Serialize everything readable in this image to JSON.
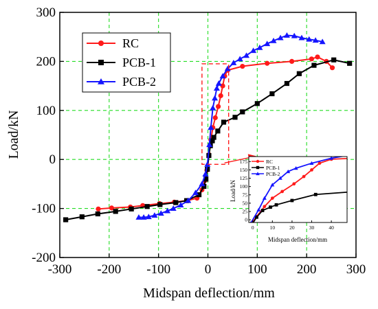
{
  "chart_data": {
    "type": "line",
    "xlabel": "Midspan deflection/mm",
    "ylabel": "Load/kN",
    "xlim": [
      -300,
      300
    ],
    "ylim": [
      -200,
      300
    ],
    "xticks": [
      "-300",
      "-200",
      "-100",
      "0",
      "100",
      "200",
      "300"
    ],
    "yticks": [
      "-200",
      "-100",
      "0",
      "100",
      "200",
      "300"
    ],
    "grid": "dashed, green",
    "legend": "upper-left",
    "series": [
      {
        "name": "RC",
        "color": "#ff1a1a",
        "marker": "circle",
        "points": [
          [
            -222,
            -101
          ],
          [
            -195,
            -99
          ],
          [
            -157,
            -97
          ],
          [
            -132,
            -94
          ],
          [
            -98,
            -90
          ],
          [
            -68,
            -87
          ],
          [
            -42,
            -84
          ],
          [
            -22,
            -79
          ],
          [
            -12,
            -62
          ],
          [
            -6,
            -43
          ],
          [
            -2,
            -22
          ],
          [
            2,
            10
          ],
          [
            6,
            40
          ],
          [
            10,
            65
          ],
          [
            15,
            85
          ],
          [
            21,
            108
          ],
          [
            26,
            130
          ],
          [
            30,
            150
          ],
          [
            34,
            170
          ],
          [
            40,
            182
          ],
          [
            70,
            190
          ],
          [
            120,
            196
          ],
          [
            170,
            200
          ],
          [
            210,
            205
          ],
          [
            222,
            209
          ],
          [
            240,
            200
          ],
          [
            252,
            187
          ]
        ]
      },
      {
        "name": "PCB-1",
        "color": "#000000",
        "marker": "square",
        "points": [
          [
            -288,
            -123
          ],
          [
            -255,
            -117
          ],
          [
            -223,
            -111
          ],
          [
            -187,
            -106
          ],
          [
            -155,
            -101
          ],
          [
            -123,
            -96
          ],
          [
            -97,
            -92
          ],
          [
            -65,
            -88
          ],
          [
            -43,
            -84
          ],
          [
            -18,
            -72
          ],
          [
            -8,
            -55
          ],
          [
            -4,
            -40
          ],
          [
            -1,
            -20
          ],
          [
            2,
            8
          ],
          [
            5,
            28
          ],
          [
            9,
            38
          ],
          [
            12,
            45
          ],
          [
            20,
            58
          ],
          [
            32,
            76
          ],
          [
            55,
            86
          ],
          [
            70,
            97
          ],
          [
            100,
            114
          ],
          [
            130,
            134
          ],
          [
            160,
            155
          ],
          [
            185,
            175
          ],
          [
            215,
            192
          ],
          [
            255,
            203
          ],
          [
            287,
            196
          ]
        ]
      },
      {
        "name": "PCB-2",
        "color": "#1515ff",
        "marker": "triangle",
        "points": [
          [
            -140,
            -118
          ],
          [
            -130,
            -118
          ],
          [
            -120,
            -117
          ],
          [
            -108,
            -114
          ],
          [
            -95,
            -110
          ],
          [
            -82,
            -105
          ],
          [
            -70,
            -100
          ],
          [
            -55,
            -93
          ],
          [
            -40,
            -84
          ],
          [
            -25,
            -68
          ],
          [
            -12,
            -50
          ],
          [
            -5,
            -30
          ],
          [
            -1,
            -10
          ],
          [
            3,
            30
          ],
          [
            6,
            65
          ],
          [
            10,
            105
          ],
          [
            14,
            125
          ],
          [
            18,
            145
          ],
          [
            22,
            155
          ],
          [
            30,
            170
          ],
          [
            40,
            185
          ],
          [
            52,
            197
          ],
          [
            65,
            205
          ],
          [
            78,
            212
          ],
          [
            92,
            222
          ],
          [
            105,
            228
          ],
          [
            120,
            236
          ],
          [
            133,
            242
          ],
          [
            147,
            248
          ],
          [
            160,
            253
          ],
          [
            175,
            252
          ],
          [
            190,
            248
          ],
          [
            205,
            245
          ],
          [
            218,
            243
          ],
          [
            232,
            240
          ]
        ]
      }
    ],
    "annotation_box": {
      "xlim": [
        -12,
        42
      ],
      "ylim": [
        -10,
        195
      ],
      "color": "#ff1a1a"
    },
    "inset": {
      "xlabel": "Midspan deflection/mm",
      "ylabel": "Load/kN",
      "xlim": [
        -2,
        48
      ],
      "ylim": [
        -8,
        190
      ],
      "xticks": [
        "0",
        "10",
        "20",
        "30",
        "40"
      ],
      "yticks": [
        "0",
        "25",
        "50",
        "75",
        "100",
        "125",
        "150",
        "175"
      ],
      "legend": "upper-left"
    }
  }
}
